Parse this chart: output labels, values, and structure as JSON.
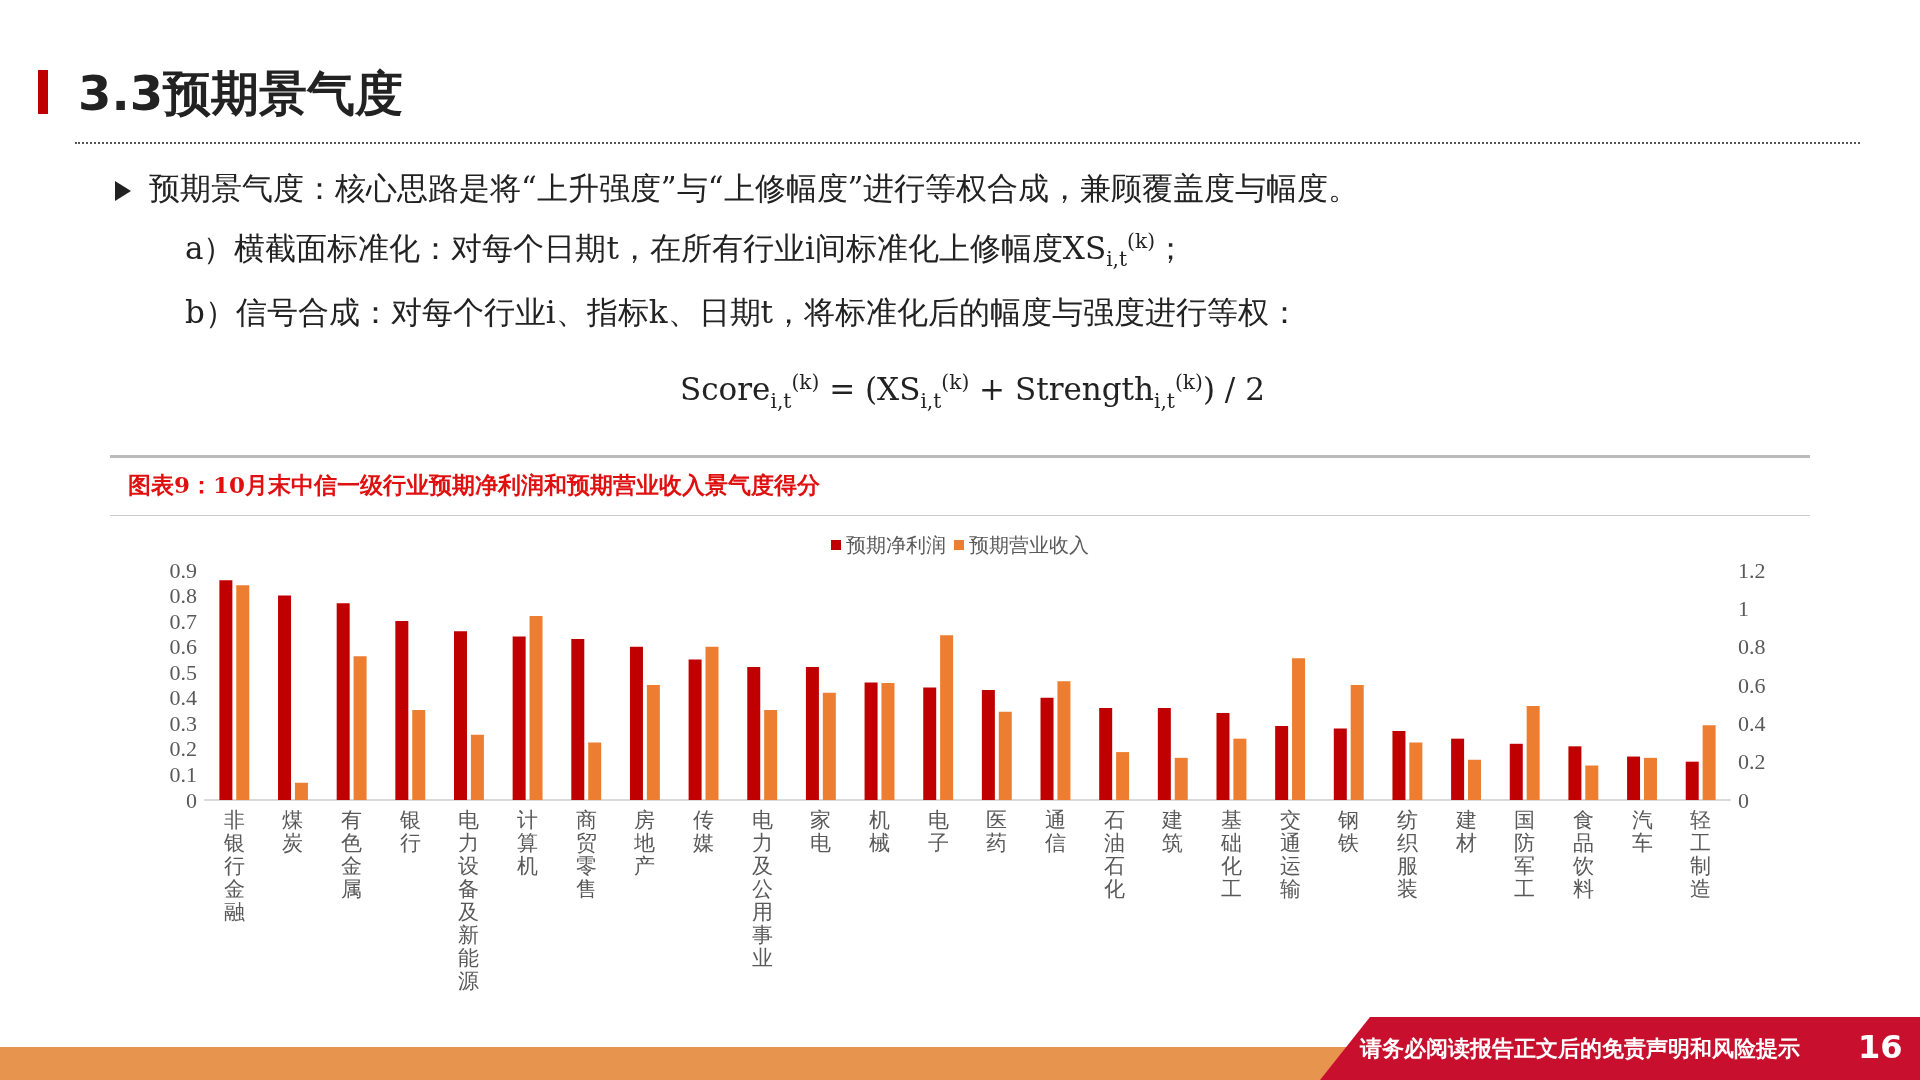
{
  "chart_data": {
    "type": "bar",
    "title": "3.3预期景气度",
    "subtitle": "图表9：10月末中信一级行业预期净利润和预期营业收入景气度得分",
    "annotations": [
      "预期景气度：核心思路是将“上升强度”与“上修幅度”进行等权合成，兼顾覆盖度与幅度。",
      "a）横截面标准化：对每个日期t，在所有行业i间标准化上修幅度XS$_{i,t}$$^{(k)}$；",
      "b）信号合成：对每个行业i、指标k、日期t，将标准化后的幅度与强度进行等权：",
      "Score$_{i,t}$$^{(k)}$ = (XS$_{i,t}$$^{(k)}$ + Strength$_{i,t}$$^{(k)}$) / 2",
      "请务必阅读报告正文后的免责声明和风险提示",
      "16"
    ],
    "categories": [
      "非银行金融",
      "煤炭",
      "有色金属",
      "银行",
      "电力设备及新能源",
      "计算机",
      "商贸零售",
      "房地产",
      "传媒",
      "电力及公用事业",
      "家电",
      "机械",
      "电子",
      "医药",
      "通信",
      "石油石化",
      "建筑",
      "基础化工",
      "交通运输",
      "钢铁",
      "纺织服装",
      "建材",
      "国防军工",
      "食品饮料",
      "汽车",
      "轻工制造"
    ],
    "series": [
      {
        "name": "预期净利润",
        "color": "#c00000",
        "values": [
          0.86,
          0.8,
          0.77,
          0.7,
          0.66,
          0.64,
          0.63,
          0.6,
          0.55,
          0.52,
          0.52,
          0.46,
          0.44,
          0.43,
          0.4,
          0.36,
          0.36,
          0.34,
          0.29,
          0.28,
          0.27,
          0.24,
          0.22,
          0.21,
          0.17,
          0.15
        ]
      },
      {
        "name": "预期营业收入",
        "color": "#ed7d31",
        "axis": "y2",
        "values": [
          1.12,
          0.09,
          0.75,
          0.47,
          0.34,
          0.96,
          0.3,
          0.6,
          0.8,
          0.47,
          0.56,
          0.61,
          0.86,
          0.46,
          0.62,
          0.25,
          0.22,
          0.32,
          0.74,
          0.6,
          0.3,
          0.21,
          0.49,
          0.18,
          0.22,
          0.39
        ]
      }
    ],
    "ylim": [
      0,
      0.9
    ],
    "yticks": [
      0,
      0.1,
      0.2,
      0.3,
      0.4,
      0.5,
      0.6,
      0.7,
      0.8,
      0.9
    ],
    "y2lim": [
      0,
      1.2
    ],
    "y2ticks": [
      0,
      0.2,
      0.4,
      0.6,
      0.8,
      {
        "value": 1,
        "label": "1"
      },
      1.2
    ],
    "legend": "top",
    "grid": false
  }
}
